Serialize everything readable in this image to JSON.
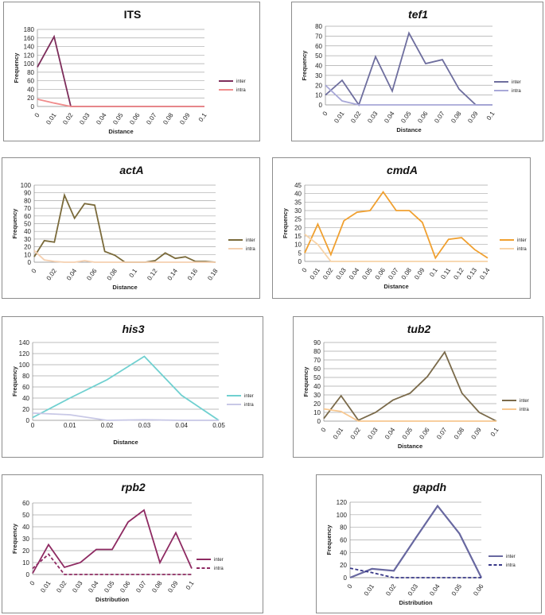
{
  "chart_data": [
    {
      "id": "its",
      "type": "line",
      "title": "ITS",
      "title_italic": false,
      "xlabel": "Distance",
      "ylabel": "Frequency",
      "categories": [
        "0",
        "0.01",
        "0.02",
        "0.03",
        "0.04",
        "0.05",
        "0.06",
        "0.07",
        "0.08",
        "0.09",
        "0.1"
      ],
      "ylim": [
        0,
        180
      ],
      "ystep": 20,
      "rotate_x": true,
      "series": [
        {
          "name": "inter",
          "color": "#7d2d5b",
          "dash": false,
          "values": [
            92,
            163,
            0,
            0,
            0,
            0,
            0,
            0,
            0,
            0,
            0
          ]
        },
        {
          "name": "intra",
          "color": "#f08c8c",
          "dash": false,
          "values": [
            17,
            8,
            0,
            0,
            0,
            0,
            0,
            0,
            0,
            0,
            0
          ]
        }
      ]
    },
    {
      "id": "tef1",
      "type": "line",
      "title": "tef1",
      "title_italic": true,
      "xlabel": "Distance",
      "ylabel": "Frequency",
      "categories": [
        "0",
        "0.01",
        "0.02",
        "0.03",
        "0.04",
        "0.05",
        "0.06",
        "0.07",
        "0.08",
        "0.09",
        "0.1"
      ],
      "ylim": [
        0,
        80
      ],
      "ystep": 10,
      "rotate_x": true,
      "series": [
        {
          "name": "inter",
          "color": "#6e6e9e",
          "dash": false,
          "values": [
            10,
            25,
            0,
            49,
            14,
            73,
            42,
            46,
            16,
            0,
            0
          ]
        },
        {
          "name": "intra",
          "color": "#a8a8d8",
          "dash": false,
          "values": [
            20,
            4,
            0,
            0,
            0,
            0,
            0,
            0,
            0,
            0,
            0
          ]
        }
      ]
    },
    {
      "id": "actA",
      "type": "line",
      "title": "actA",
      "title_italic": true,
      "xlabel": "Distance",
      "ylabel": "Frequency",
      "x": [
        0,
        0.01,
        0.02,
        0.03,
        0.04,
        0.05,
        0.06,
        0.07,
        0.08,
        0.09,
        0.1,
        0.11,
        0.12,
        0.13,
        0.14,
        0.15,
        0.16,
        0.17,
        0.18
      ],
      "xticks": [
        "0",
        "0.02",
        "0.04",
        "0.06",
        "0.08",
        "0.1",
        "0.12",
        "0.14",
        "0.16",
        "0.18"
      ],
      "ylim": [
        0,
        100
      ],
      "ystep": 10,
      "rotate_x": true,
      "series": [
        {
          "name": "inter",
          "color": "#7a6a3a",
          "dash": false,
          "values": [
            7,
            28,
            26,
            87,
            57,
            76,
            74,
            14,
            9,
            0,
            0,
            0,
            2,
            12,
            5,
            7,
            1,
            1,
            0
          ]
        },
        {
          "name": "intra",
          "color": "#f5d0b0",
          "dash": false,
          "values": [
            15,
            3,
            1,
            0,
            0,
            2,
            0,
            0,
            0,
            0,
            0,
            0,
            0,
            0,
            0,
            0,
            0,
            0,
            0
          ]
        }
      ]
    },
    {
      "id": "cmdA",
      "type": "line",
      "title": "cmdA",
      "title_italic": true,
      "xlabel": "Distance",
      "ylabel": "Frequency",
      "categories": [
        "0",
        "0.01",
        "0.02",
        "0.03",
        "0.04",
        "0.05",
        "0.06",
        "0.07",
        "0.08",
        "0.09",
        "0.1",
        "0.11",
        "0.12",
        "0.13",
        "0.14"
      ],
      "ylim": [
        0,
        45
      ],
      "ystep": 5,
      "rotate_x": true,
      "series": [
        {
          "name": "inter",
          "color": "#f0a030",
          "dash": false,
          "values": [
            5,
            22,
            4,
            24,
            29,
            30,
            41,
            30,
            30,
            23,
            2,
            13,
            14,
            7,
            2
          ]
        },
        {
          "name": "intra",
          "color": "#f8d4a8",
          "dash": false,
          "values": [
            16,
            10,
            0,
            0,
            0,
            0,
            0,
            0,
            0,
            0,
            0,
            0,
            0,
            0,
            0
          ]
        }
      ]
    },
    {
      "id": "his3",
      "type": "line",
      "title": "his3",
      "title_italic": true,
      "xlabel": "Distance",
      "ylabel": "Frequency",
      "categories": [
        "0",
        "0.01",
        "0.02",
        "0.03",
        "0.04",
        "0.05"
      ],
      "ylim": [
        0,
        140
      ],
      "ystep": 20,
      "rotate_x": false,
      "series": [
        {
          "name": "inter",
          "color": "#70d0d0",
          "dash": false,
          "values": [
            5,
            40,
            73,
            115,
            45,
            0
          ]
        },
        {
          "name": "intra",
          "color": "#c8c8e6",
          "dash": false,
          "values": [
            13,
            10,
            0,
            1,
            0,
            0
          ]
        }
      ]
    },
    {
      "id": "tub2",
      "type": "line",
      "title": "tub2",
      "title_italic": true,
      "xlabel": "Distance",
      "ylabel": "Frequency",
      "categories": [
        "0",
        "0.01",
        "0.02",
        "0.03",
        "0.04",
        "0.05",
        "0.06",
        "0.07",
        "0.08",
        "0.09",
        "0.1"
      ],
      "ylim": [
        0,
        90
      ],
      "ystep": 10,
      "rotate_x": true,
      "series": [
        {
          "name": "inter",
          "color": "#7a6a4a",
          "dash": false,
          "values": [
            3,
            29,
            1,
            10,
            24,
            32,
            51,
            79,
            32,
            10,
            0
          ]
        },
        {
          "name": "intra",
          "color": "#f8c890",
          "dash": false,
          "values": [
            14,
            11,
            0,
            0,
            0,
            0,
            0,
            0,
            0,
            0,
            0
          ]
        }
      ]
    },
    {
      "id": "rpb2",
      "type": "line",
      "title": "rpb2",
      "title_italic": true,
      "xlabel": "Distribution",
      "ylabel": "Frequency",
      "categories": [
        "0",
        "0.01",
        "0.02",
        "0.03",
        "0.04",
        "0.05",
        "0.06",
        "0.07",
        "0.08",
        "0.09",
        "0.1"
      ],
      "ylim": [
        0,
        60
      ],
      "ystep": 10,
      "rotate_x": true,
      "series": [
        {
          "name": "inter",
          "color": "#8e2a62",
          "dash": false,
          "values": [
            1,
            25,
            6,
            10,
            21,
            21,
            44,
            54,
            10,
            35,
            5
          ]
        },
        {
          "name": "intra",
          "color": "#8e2a62",
          "dash": true,
          "values": [
            5,
            17,
            0,
            0,
            0,
            0,
            0,
            0,
            0,
            0,
            0
          ]
        }
      ]
    },
    {
      "id": "gapdh",
      "type": "line",
      "title": "gapdh",
      "title_italic": true,
      "xlabel": "Distribution",
      "ylabel": "Frequency",
      "categories": [
        "0",
        "0.01",
        "0.02",
        "0.03",
        "0.04",
        "0.05",
        "0.06"
      ],
      "ylim": [
        0,
        120
      ],
      "ystep": 20,
      "rotate_x": true,
      "series": [
        {
          "name": "inter",
          "color": "#6868a0",
          "dash": false,
          "values": [
            0,
            14,
            11,
            63,
            114,
            70,
            0
          ]
        },
        {
          "name": "intra",
          "color": "#383888",
          "dash": true,
          "values": [
            15,
            8,
            0,
            0,
            0,
            0,
            0
          ]
        }
      ]
    }
  ]
}
